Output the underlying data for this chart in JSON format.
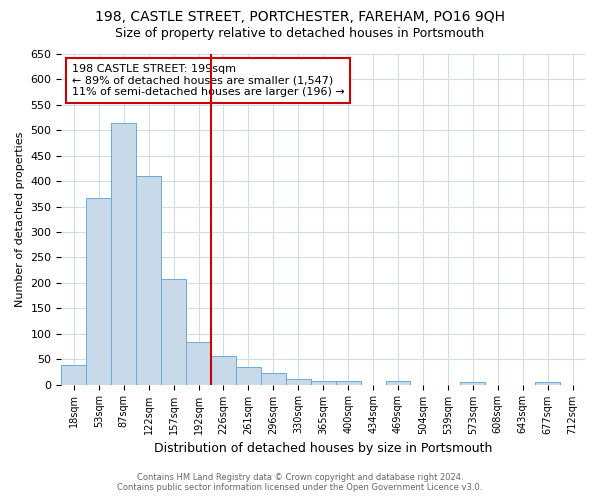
{
  "title1": "198, CASTLE STREET, PORTCHESTER, FAREHAM, PO16 9QH",
  "title2": "Size of property relative to detached houses in Portsmouth",
  "xlabel": "Distribution of detached houses by size in Portsmouth",
  "ylabel": "Number of detached properties",
  "bar_color": "#c8daea",
  "bar_edge_color": "#6aaad4",
  "categories": [
    "18sqm",
    "53sqm",
    "87sqm",
    "122sqm",
    "157sqm",
    "192sqm",
    "226sqm",
    "261sqm",
    "296sqm",
    "330sqm",
    "365sqm",
    "400sqm",
    "434sqm",
    "469sqm",
    "504sqm",
    "539sqm",
    "573sqm",
    "608sqm",
    "643sqm",
    "677sqm",
    "712sqm"
  ],
  "values": [
    38,
    366,
    515,
    410,
    207,
    83,
    57,
    35,
    22,
    10,
    8,
    7,
    0,
    8,
    0,
    0,
    5,
    0,
    0,
    5,
    0
  ],
  "property_line_x": 5.5,
  "annotation_text1": "198 CASTLE STREET: 199sqm",
  "annotation_text2": "← 89% of detached houses are smaller (1,547)",
  "annotation_text3": "11% of semi-detached houses are larger (196) →",
  "annotation_box_color": "#cc0000",
  "ylim": [
    0,
    650
  ],
  "yticks": [
    0,
    50,
    100,
    150,
    200,
    250,
    300,
    350,
    400,
    450,
    500,
    550,
    600,
    650
  ],
  "footer1": "Contains HM Land Registry data © Crown copyright and database right 2024.",
  "footer2": "Contains public sector information licensed under the Open Government Licence v3.0.",
  "background_color": "#ffffff",
  "grid_color": "#d0dce8",
  "title1_fontsize": 10,
  "title2_fontsize": 9,
  "xlabel_fontsize": 9,
  "ylabel_fontsize": 8
}
